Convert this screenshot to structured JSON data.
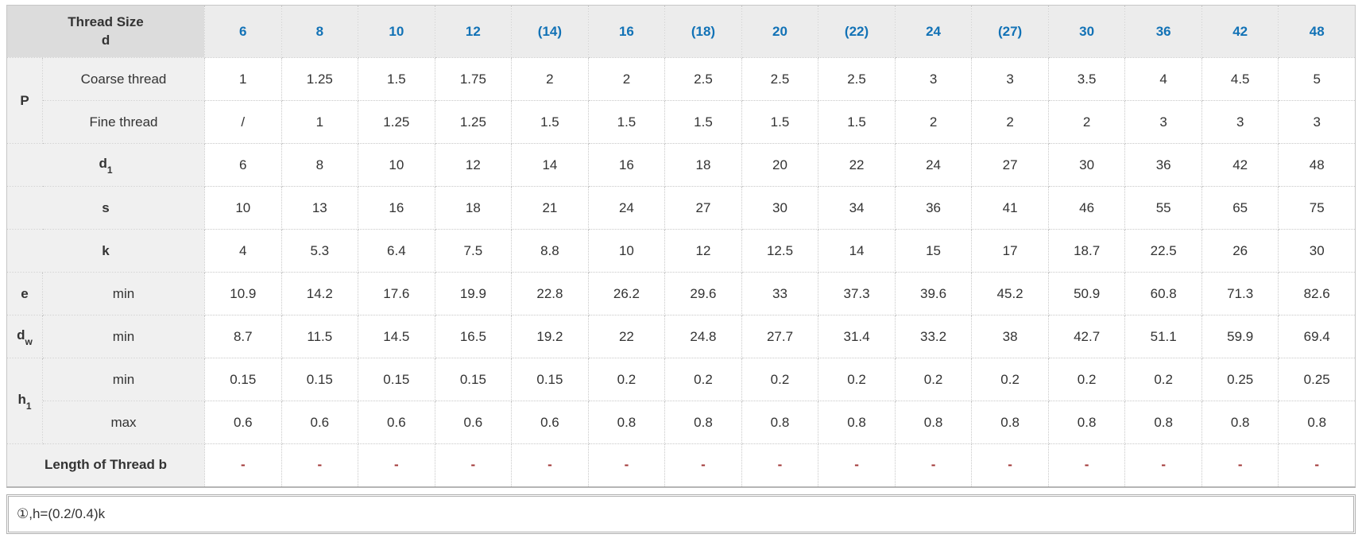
{
  "table": {
    "corner": {
      "line1": "Thread Size",
      "line2": "d"
    },
    "columns": [
      "6",
      "8",
      "10",
      "12",
      "(14)",
      "16",
      "(18)",
      "20",
      "(22)",
      "24",
      "(27)",
      "30",
      "36",
      "42",
      "48"
    ],
    "rows": [
      {
        "group": {
          "main": "P",
          "sub": ""
        },
        "label": {
          "main": "Coarse thread",
          "sub": ""
        },
        "values": [
          "1",
          "1.25",
          "1.5",
          "1.75",
          "2",
          "2",
          "2.5",
          "2.5",
          "2.5",
          "3",
          "3",
          "3.5",
          "4",
          "4.5",
          "5"
        ],
        "value_style": "normal"
      },
      {
        "label": {
          "main": "Fine thread",
          "sub": ""
        },
        "values": [
          "/",
          "1",
          "1.25",
          "1.25",
          "1.5",
          "1.5",
          "1.5",
          "1.5",
          "1.5",
          "2",
          "2",
          "2",
          "3",
          "3",
          "3"
        ],
        "value_style": "normal"
      },
      {
        "label": {
          "main": "d",
          "sub": "1"
        },
        "values": [
          "6",
          "8",
          "10",
          "12",
          "14",
          "16",
          "18",
          "20",
          "22",
          "24",
          "27",
          "30",
          "36",
          "42",
          "48"
        ],
        "value_style": "normal"
      },
      {
        "label": {
          "main": "s",
          "sub": ""
        },
        "values": [
          "10",
          "13",
          "16",
          "18",
          "21",
          "24",
          "27",
          "30",
          "34",
          "36",
          "41",
          "46",
          "55",
          "65",
          "75"
        ],
        "value_style": "normal"
      },
      {
        "label": {
          "main": "k",
          "sub": ""
        },
        "values": [
          "4",
          "5.3",
          "6.4",
          "7.5",
          "8.8",
          "10",
          "12",
          "12.5",
          "14",
          "15",
          "17",
          "18.7",
          "22.5",
          "26",
          "30"
        ],
        "value_style": "normal"
      },
      {
        "group": {
          "main": "e",
          "sub": ""
        },
        "label": {
          "main": "min",
          "sub": ""
        },
        "values": [
          "10.9",
          "14.2",
          "17.6",
          "19.9",
          "22.8",
          "26.2",
          "29.6",
          "33",
          "37.3",
          "39.6",
          "45.2",
          "50.9",
          "60.8",
          "71.3",
          "82.6"
        ],
        "value_style": "normal"
      },
      {
        "group": {
          "main": "d",
          "sub": "w"
        },
        "label": {
          "main": "min",
          "sub": ""
        },
        "values": [
          "8.7",
          "11.5",
          "14.5",
          "16.5",
          "19.2",
          "22",
          "24.8",
          "27.7",
          "31.4",
          "33.2",
          "38",
          "42.7",
          "51.1",
          "59.9",
          "69.4"
        ],
        "value_style": "normal"
      },
      {
        "group": {
          "main": "h",
          "sub": "1"
        },
        "label": {
          "main": "min",
          "sub": ""
        },
        "values": [
          "0.15",
          "0.15",
          "0.15",
          "0.15",
          "0.15",
          "0.2",
          "0.2",
          "0.2",
          "0.2",
          "0.2",
          "0.2",
          "0.2",
          "0.2",
          "0.25",
          "0.25"
        ],
        "value_style": "normal"
      },
      {
        "label": {
          "main": "max",
          "sub": ""
        },
        "values": [
          "0.6",
          "0.6",
          "0.6",
          "0.6",
          "0.6",
          "0.8",
          "0.8",
          "0.8",
          "0.8",
          "0.8",
          "0.8",
          "0.8",
          "0.8",
          "0.8",
          "0.8"
        ],
        "value_style": "normal"
      },
      {
        "label": {
          "main": "Length of Thread b",
          "sub": ""
        },
        "values": [
          "-",
          "-",
          "-",
          "-",
          "-",
          "-",
          "-",
          "-",
          "-",
          "-",
          "-",
          "-",
          "-",
          "-",
          "-"
        ],
        "value_style": "dash"
      }
    ]
  },
  "footnote": "①,h=(0.2/0.4)k",
  "colors": {
    "header_link_blue": "#1272b6",
    "dash_red": "#a03434",
    "corner_bg": "#dcdcdc",
    "header_bg": "#ececec",
    "label_bg": "#f0f0f0",
    "border": "#c8c8c8"
  }
}
